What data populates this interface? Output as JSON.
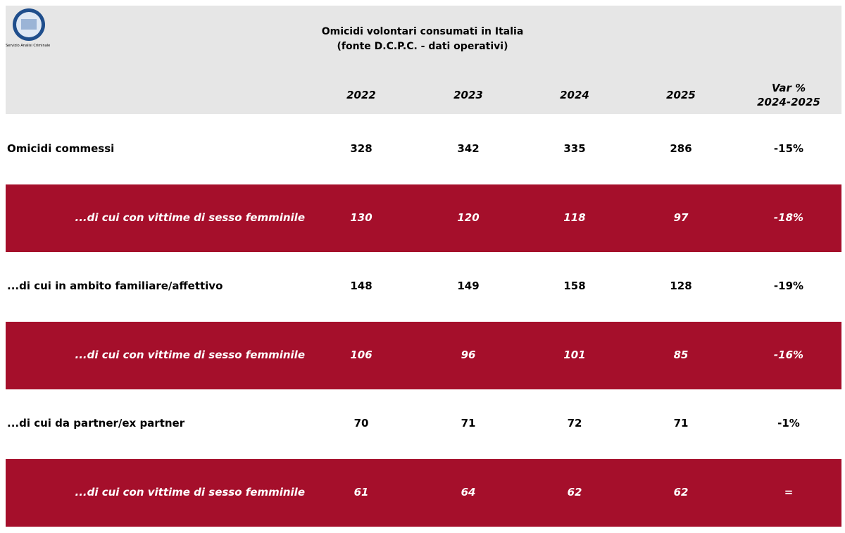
{
  "header": {
    "logo_text": "Servizio Analisi Criminale",
    "title": [
      "Omicidi volontari consumati in Italia",
      "(fonte D.C.P.C. - dati operativi)"
    ]
  },
  "table": {
    "columns": [
      [
        "2022"
      ],
      [
        "2023"
      ],
      [
        "2024"
      ],
      [
        "2025"
      ],
      [
        "Var %",
        "2024-2025"
      ]
    ],
    "rows": [
      {
        "label": "Omicidi commessi",
        "highlight": false,
        "values": [
          "328",
          "342",
          "335",
          "286",
          "-15%"
        ]
      },
      {
        "label": "...di cui con vittime di sesso femminile",
        "highlight": true,
        "values": [
          "130",
          "120",
          "118",
          "97",
          "-18%"
        ]
      },
      {
        "label": "...di cui in ambito familiare/affettivo",
        "highlight": false,
        "values": [
          "148",
          "149",
          "158",
          "128",
          "-19%"
        ]
      },
      {
        "label": "...di cui con vittime di sesso femminile",
        "highlight": true,
        "values": [
          "106",
          "96",
          "101",
          "85",
          "-16%"
        ]
      },
      {
        "label": "...di cui da partner/ex partner",
        "highlight": false,
        "values": [
          "70",
          "71",
          "72",
          "71",
          "-1%"
        ]
      },
      {
        "label": "...di cui con vittime di sesso femminile",
        "highlight": true,
        "values": [
          "61",
          "64",
          "62",
          "62",
          "="
        ]
      }
    ]
  }
}
